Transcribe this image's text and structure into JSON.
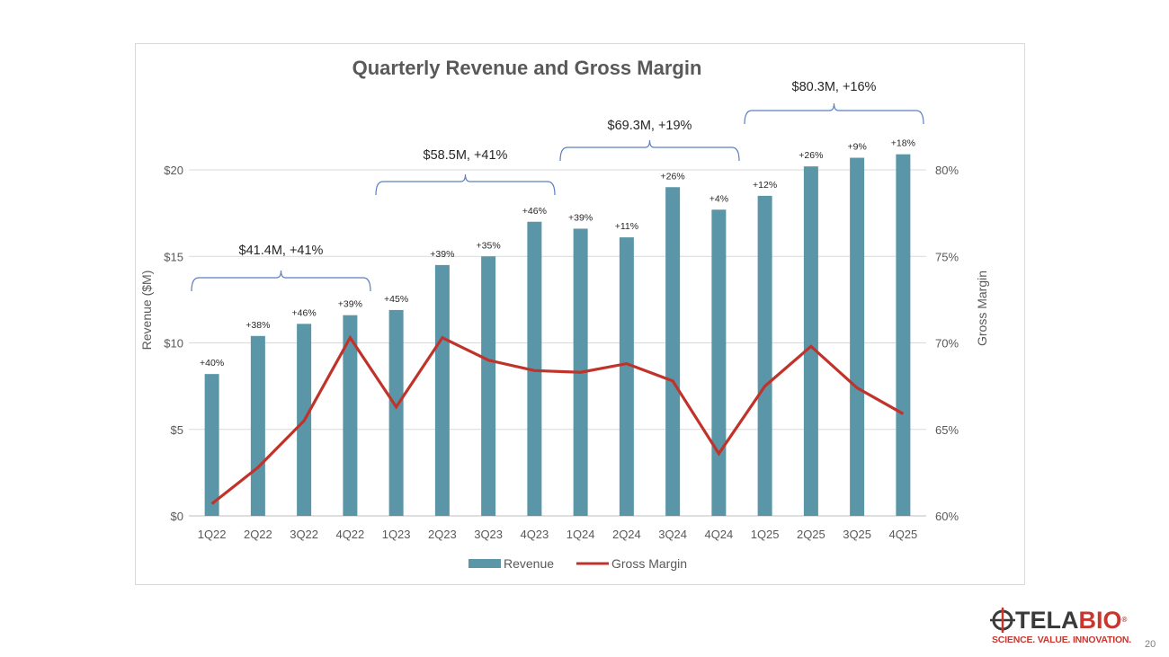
{
  "chart_data": {
    "type": "bar",
    "title": "Quarterly Revenue and Gross Margin",
    "categories": [
      "1Q22",
      "2Q22",
      "3Q22",
      "4Q22",
      "1Q23",
      "2Q23",
      "3Q23",
      "4Q23",
      "1Q24",
      "2Q24",
      "3Q24",
      "4Q24",
      "1Q25",
      "2Q25",
      "3Q25",
      "4Q25"
    ],
    "series": [
      {
        "name": "Revenue",
        "type": "bar",
        "axis": "left",
        "color": "#5b96a8",
        "values": [
          8.2,
          10.4,
          11.1,
          11.6,
          11.9,
          14.5,
          15.0,
          17.0,
          16.6,
          16.1,
          19.0,
          17.7,
          18.5,
          20.2,
          20.7,
          20.9
        ]
      },
      {
        "name": "Gross Margin",
        "type": "line",
        "axis": "right",
        "color": "#c0332b",
        "values": [
          60.7,
          62.8,
          65.5,
          70.3,
          66.3,
          70.3,
          69.0,
          68.4,
          68.3,
          68.8,
          67.8,
          63.6,
          67.5,
          69.8,
          67.4,
          65.9
        ]
      }
    ],
    "bar_labels": [
      "+40%",
      "+38%",
      "+46%",
      "+39%",
      "+45%",
      "+39%",
      "+35%",
      "+46%",
      "+39%",
      "+11%",
      "+26%",
      "+4%",
      "+12%",
      "+26%",
      "+9%",
      "+18%"
    ],
    "ylabel": "Revenue ($M)",
    "y2label": "Gross Margin",
    "ylim": [
      0,
      20
    ],
    "y2lim": [
      60,
      80
    ],
    "yticks": [
      "$0",
      "$5",
      "$10",
      "$15",
      "$20"
    ],
    "y2ticks": [
      "60%",
      "65%",
      "70%",
      "75%",
      "80%"
    ],
    "grid": true,
    "legend": "bottom",
    "annotations": [
      {
        "text": "$41.4M, +41%",
        "start": 0,
        "end": 3
      },
      {
        "text": "$58.5M, +41%",
        "start": 4,
        "end": 7
      },
      {
        "text": "$69.3M, +19%",
        "start": 8,
        "end": 11
      },
      {
        "text": "$80.3M, +16%",
        "start": 12,
        "end": 15
      }
    ]
  },
  "logo": {
    "word_a": "TELA",
    "word_b": "BIO",
    "registered": "®",
    "tagline": "SCIENCE. VALUE. INNOVATION."
  },
  "page_number": "20"
}
